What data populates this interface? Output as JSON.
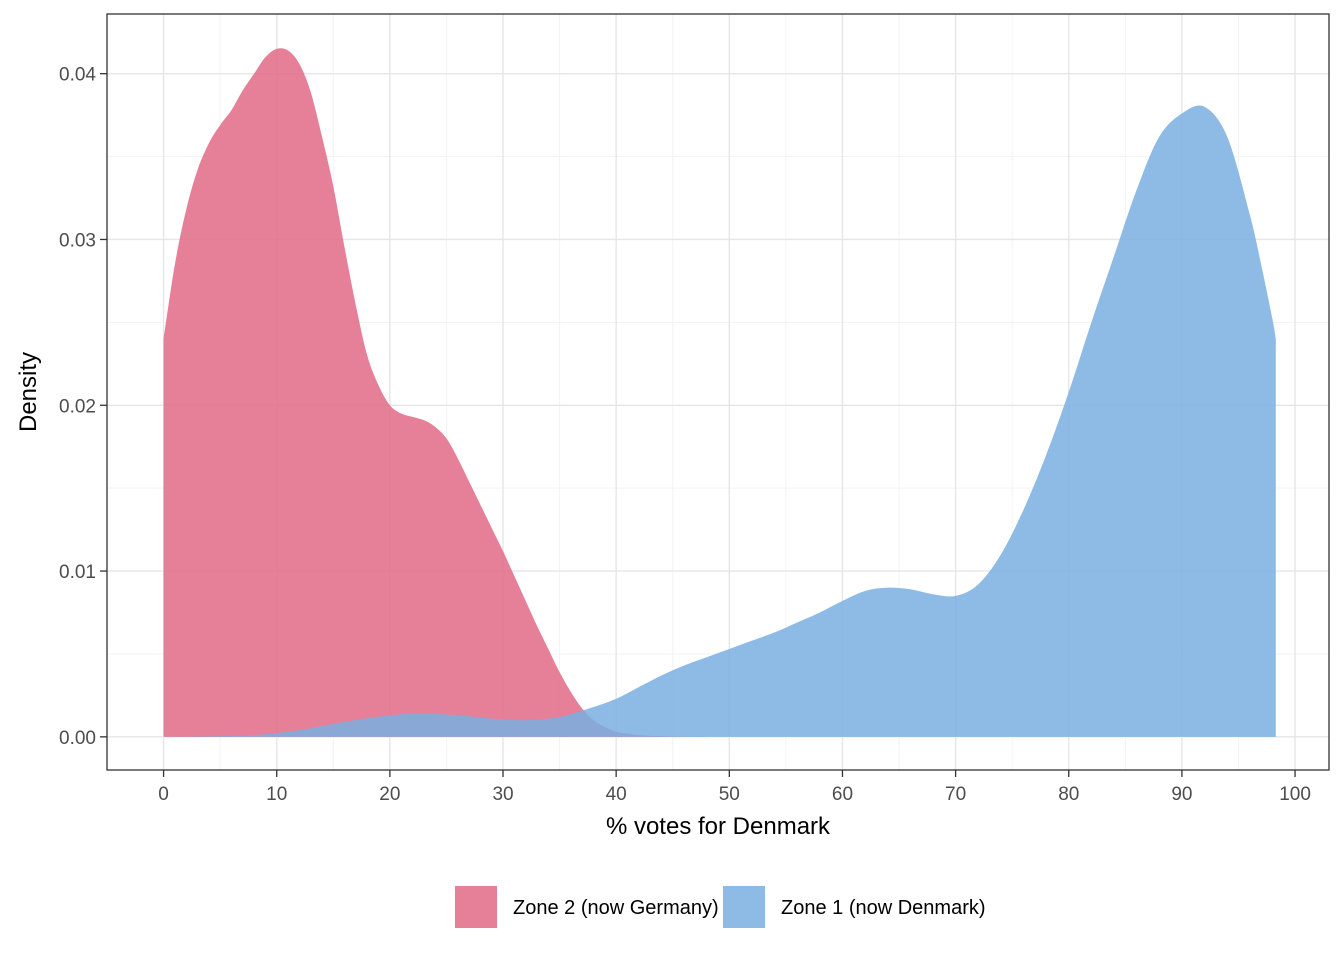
{
  "chart_data": {
    "type": "area",
    "xlabel": "% votes for Denmark",
    "ylabel": "Density",
    "xlim": [
      -5,
      103
    ],
    "ylim": [
      -0.002,
      0.0436
    ],
    "x_ticks": [
      0,
      10,
      20,
      30,
      40,
      50,
      60,
      70,
      80,
      90,
      100
    ],
    "y_ticks": [
      0.0,
      0.01,
      0.02,
      0.03,
      0.04
    ],
    "x_tick_labels": [
      "0",
      "10",
      "20",
      "30",
      "40",
      "50",
      "60",
      "70",
      "80",
      "90",
      "100"
    ],
    "y_tick_labels": [
      "0.00",
      "0.01",
      "0.02",
      "0.03",
      "0.04"
    ],
    "grid": true,
    "legend_position": "bottom",
    "series": [
      {
        "name": "Zone 2 (now Germany)",
        "color": "#E16A86",
        "x": [
          0,
          1,
          2,
          3,
          4,
          5,
          6,
          7,
          8,
          9,
          10,
          11,
          12,
          13,
          14,
          15,
          16,
          17,
          18,
          19,
          20,
          21,
          22,
          23,
          24,
          25,
          26,
          27,
          28,
          29,
          30,
          31,
          32,
          33,
          34,
          35,
          36,
          37,
          38,
          39,
          40,
          41,
          42,
          44,
          46,
          48
        ],
        "values": [
          0.024,
          0.0285,
          0.0318,
          0.0342,
          0.0358,
          0.0369,
          0.0378,
          0.039,
          0.04,
          0.041,
          0.0415,
          0.0414,
          0.0406,
          0.0389,
          0.0362,
          0.0332,
          0.0295,
          0.026,
          0.023,
          0.0212,
          0.02,
          0.0195,
          0.0193,
          0.0191,
          0.0187,
          0.018,
          0.0168,
          0.0154,
          0.014,
          0.0126,
          0.0112,
          0.0097,
          0.0082,
          0.0067,
          0.0053,
          0.0039,
          0.0027,
          0.0017,
          0.001,
          0.0006,
          0.0003,
          0.0002,
          0.0001,
          3e-05,
          1e-05,
          0.0
        ]
      },
      {
        "name": "Zone 1 (now Denmark)",
        "color": "#7AAFE0",
        "x": [
          0,
          4,
          8,
          12,
          16,
          20,
          23,
          26,
          29,
          32,
          35,
          38,
          40,
          42,
          44,
          46,
          48,
          50,
          52,
          54,
          56,
          58,
          60,
          62,
          64,
          66,
          68,
          70,
          72,
          74,
          76,
          78,
          80,
          82,
          84,
          86,
          88,
          90,
          92,
          94,
          96,
          97,
          98,
          98.3
        ],
        "values": [
          0.0,
          3e-05,
          0.0001,
          0.0004,
          0.0009,
          0.0013,
          0.0014,
          0.0013,
          0.0011,
          0.001,
          0.0012,
          0.0018,
          0.0023,
          0.003,
          0.0037,
          0.0043,
          0.0048,
          0.0053,
          0.0058,
          0.0063,
          0.0069,
          0.0075,
          0.0082,
          0.0088,
          0.009,
          0.0089,
          0.0086,
          0.0085,
          0.0092,
          0.011,
          0.0137,
          0.017,
          0.0208,
          0.025,
          0.029,
          0.033,
          0.0362,
          0.0376,
          0.038,
          0.0362,
          0.0315,
          0.0285,
          0.0252,
          0.024
        ]
      }
    ]
  }
}
